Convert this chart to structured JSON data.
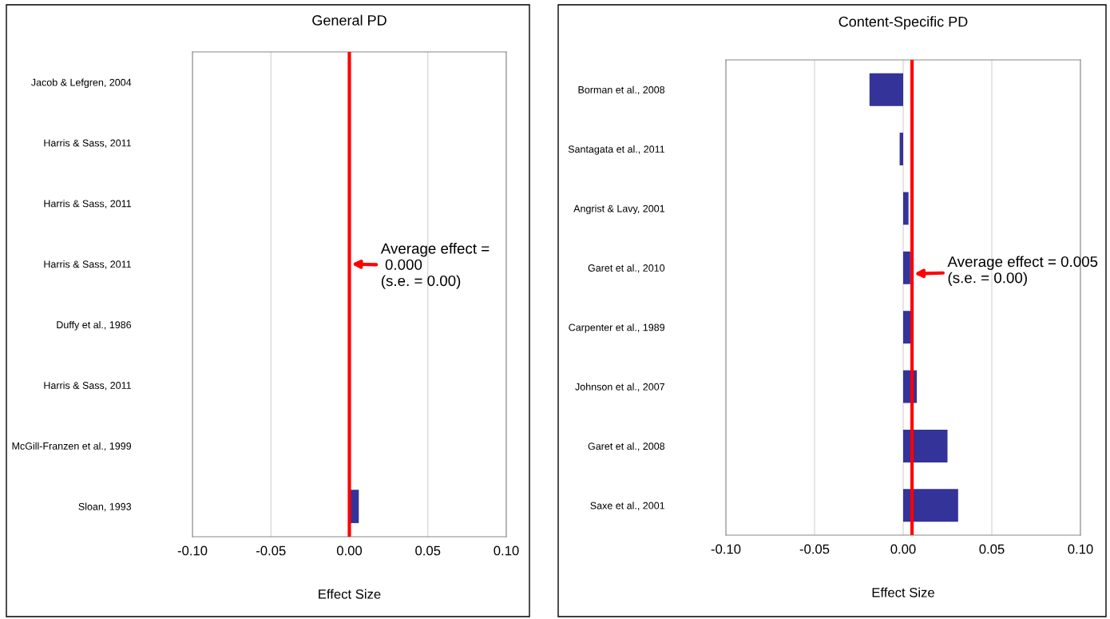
{
  "chart_data": [
    {
      "type": "bar",
      "orientation": "horizontal",
      "title": "General PD",
      "xlabel": "Effect Size",
      "categories": [
        "Jacob & Lefgren, 2004",
        "Harris & Sass, 2011",
        "Harris & Sass, 2011",
        "Harris & Sass, 2011",
        "Duffy et al., 1986",
        "Harris & Sass, 2011",
        "McGill-Franzen et al., 1999",
        "Sloan, 1993"
      ],
      "values": [
        0.0,
        0.0,
        0.0,
        0.0,
        0.0,
        0.0,
        0.0,
        0.006
      ],
      "color": "#333399",
      "xlim": [
        -0.1,
        0.1
      ],
      "xticks": [
        {
          "value": -0.1,
          "label": "-0.10"
        },
        {
          "value": -0.05,
          "label": "-0.05"
        },
        {
          "value": 0.0,
          "label": "0.00"
        },
        {
          "value": 0.05,
          "label": "0.05"
        },
        {
          "value": 0.1,
          "label": "0.10"
        }
      ],
      "grid": "x",
      "ref_lines": [
        {
          "axis": "x",
          "value": 0.0,
          "label": "Average effect =\n 0.000\n(s.e. = 0.00)",
          "color": "#ff0000"
        }
      ]
    },
    {
      "type": "bar",
      "orientation": "horizontal",
      "title": "Content-Specific PD",
      "xlabel": "Effect Size",
      "categories": [
        "Borman et al., 2008",
        "Santagata et al., 2011",
        "Angrist & Lavy, 2001",
        "Garet et al., 2010",
        "Carpenter et al., 1989",
        "Johnson et al., 2007",
        "Garet et al., 2008",
        "Saxe et al., 2001"
      ],
      "values": [
        -0.019,
        -0.002,
        0.003,
        0.004,
        0.0045,
        0.0077,
        0.025,
        0.031
      ],
      "color": "#333399",
      "xlim": [
        -0.1,
        0.1
      ],
      "xticks": [
        {
          "value": -0.1,
          "label": "-0.10"
        },
        {
          "value": -0.05,
          "label": "-0.05"
        },
        {
          "value": 0.0,
          "label": "0.00"
        },
        {
          "value": 0.05,
          "label": "0.05"
        },
        {
          "value": 0.1,
          "label": "0.10"
        }
      ],
      "grid": "x",
      "ref_lines": [
        {
          "axis": "x",
          "value": 0.005,
          "label": "Average effect = 0.005\n(s.e. = 0.00)",
          "color": "#ff0000"
        }
      ]
    }
  ]
}
